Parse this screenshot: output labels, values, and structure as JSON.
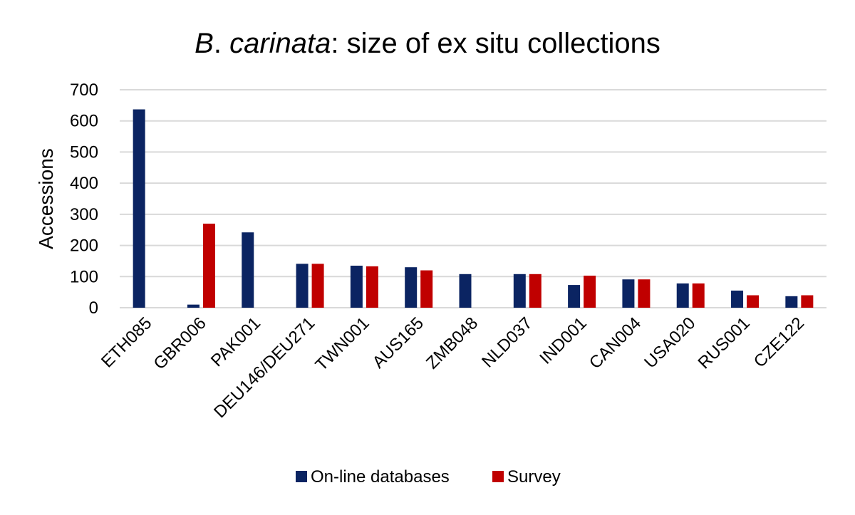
{
  "chart_data": {
    "type": "bar",
    "title_italic": "B",
    "title_dot": ".",
    "title_italic2": " carinata",
    "title_rest": ": size of ex situ collections",
    "xlabel": "",
    "ylabel": "Accessions",
    "ylim": [
      0,
      700
    ],
    "yticks": [
      0,
      100,
      200,
      300,
      400,
      500,
      600,
      700
    ],
    "grid": true,
    "legend_position": "bottom",
    "categories": [
      "ETH085",
      "GBR006",
      "PAK001",
      "DEU146/DEU271",
      "TWN001",
      "AUS165",
      "ZMB048",
      "NLD037",
      "IND001",
      "CAN004",
      "USA020",
      "RUS001",
      "CZE122"
    ],
    "series": [
      {
        "name": "On-line databases",
        "color": "#0b2462",
        "values": [
          637,
          10,
          242,
          141,
          135,
          130,
          108,
          108,
          73,
          91,
          78,
          55,
          37
        ]
      },
      {
        "name": "Survey",
        "color": "#c00000",
        "values": [
          0,
          270,
          0,
          141,
          133,
          120,
          0,
          108,
          103,
          91,
          78,
          40,
          40
        ]
      }
    ]
  }
}
